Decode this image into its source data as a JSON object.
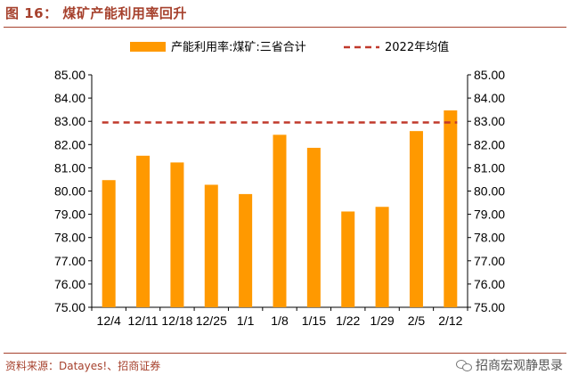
{
  "header": {
    "figure_title": "图 16： 煤矿产能利用率回升"
  },
  "footer": {
    "source": "资料来源：Datayes!、招商证券",
    "watermark": "招商宏观静思录"
  },
  "colors": {
    "bar": "#ff9900",
    "avg_line": "#c0392b",
    "brand": "#a6412d"
  },
  "chart_data": {
    "type": "bar",
    "title": "",
    "categories": [
      "12/4",
      "12/11",
      "12/18",
      "12/25",
      "1/1",
      "1/8",
      "1/15",
      "1/22",
      "1/29",
      "2/5",
      "2/12"
    ],
    "series": [
      {
        "name": "产能利用率:煤矿:三省合计",
        "type": "bar",
        "values": [
          80.47,
          81.52,
          81.23,
          80.27,
          79.87,
          82.42,
          81.86,
          79.12,
          79.32,
          82.58,
          83.47
        ]
      },
      {
        "name": "2022年均值",
        "type": "line",
        "style": "dashed",
        "value": 82.95
      }
    ],
    "ylim": [
      75.0,
      85.0
    ],
    "yticks": [
      "75.00",
      "76.00",
      "77.00",
      "78.00",
      "79.00",
      "80.00",
      "81.00",
      "82.00",
      "83.00",
      "84.00",
      "85.00"
    ],
    "secondary_y": true,
    "legend": "top",
    "grid": false
  }
}
